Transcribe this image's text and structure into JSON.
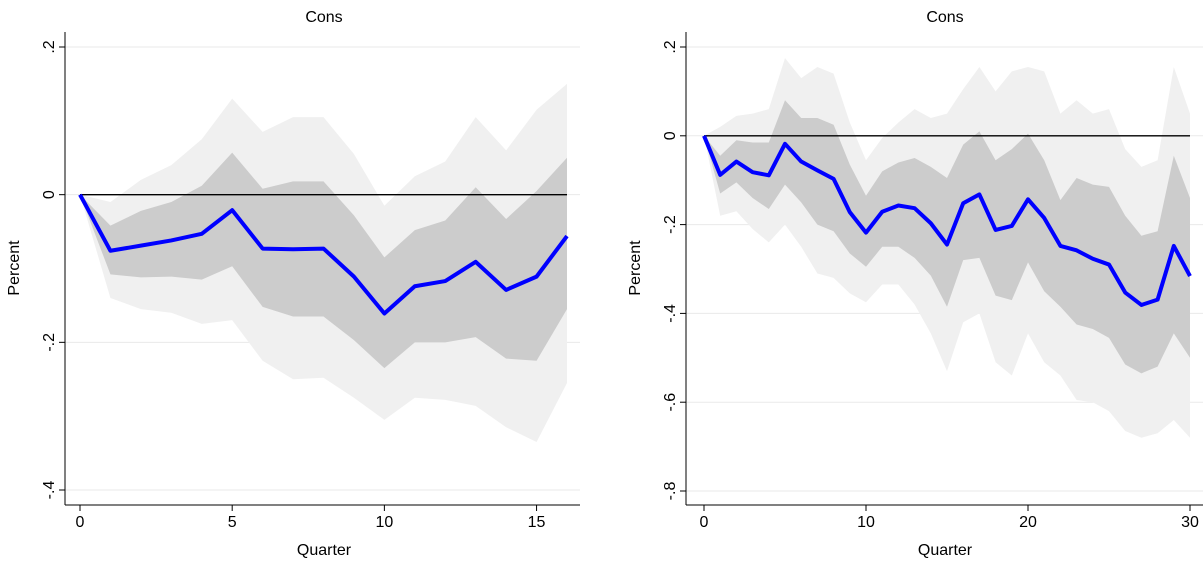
{
  "chart_data": [
    {
      "type": "area",
      "title": "Cons",
      "xlabel": "Quarter",
      "ylabel": "Percent",
      "xlim": [
        0,
        16
      ],
      "ylim": [
        -0.4,
        0.2
      ],
      "xticks": [
        0,
        5,
        10,
        15
      ],
      "xtick_labels": [
        "0",
        "5",
        "10",
        "15"
      ],
      "yticks": [
        -0.4,
        -0.2,
        0,
        0.2
      ],
      "ytick_labels": [
        "-.4",
        "-.2",
        "0",
        ".2"
      ],
      "grid": true,
      "zero_line": 0,
      "x": [
        0,
        1,
        2,
        3,
        4,
        5,
        6,
        7,
        8,
        9,
        10,
        11,
        12,
        13,
        14,
        15,
        16
      ],
      "series": [
        {
          "role": "outer_band",
          "color": "#f0f0f0",
          "upper": [
            0,
            -0.01,
            0.02,
            0.04,
            0.075,
            0.13,
            0.085,
            0.105,
            0.105,
            0.055,
            -0.015,
            0.025,
            0.045,
            0.105,
            0.06,
            0.115,
            0.15
          ],
          "lower": [
            0,
            -0.14,
            -0.155,
            -0.16,
            -0.175,
            -0.17,
            -0.225,
            -0.25,
            -0.248,
            -0.275,
            -0.305,
            -0.275,
            -0.278,
            -0.286,
            -0.315,
            -0.335,
            -0.255
          ]
        },
        {
          "role": "inner_band",
          "color": "#cccccc",
          "upper": [
            0,
            -0.042,
            -0.022,
            -0.01,
            0.012,
            0.057,
            0.008,
            0.018,
            0.018,
            -0.028,
            -0.085,
            -0.048,
            -0.035,
            0.01,
            -0.033,
            0.005,
            0.05
          ],
          "lower": [
            0,
            -0.108,
            -0.112,
            -0.111,
            -0.115,
            -0.097,
            -0.152,
            -0.165,
            -0.165,
            -0.197,
            -0.235,
            -0.2,
            -0.2,
            -0.193,
            -0.222,
            -0.225,
            -0.155
          ]
        },
        {
          "role": "response",
          "color": "#0000ff",
          "values": [
            0,
            -0.076,
            -0.069,
            -0.062,
            -0.053,
            -0.021,
            -0.073,
            -0.074,
            -0.073,
            -0.111,
            -0.161,
            -0.124,
            -0.117,
            -0.091,
            -0.129,
            -0.111,
            -0.056
          ]
        }
      ]
    },
    {
      "type": "area",
      "title": "Cons",
      "xlabel": "Quarter",
      "ylabel": "Percent",
      "xlim": [
        0,
        30
      ],
      "ylim": [
        -0.8,
        0.2
      ],
      "xticks": [
        0,
        10,
        20,
        30
      ],
      "xtick_labels": [
        "0",
        "10",
        "20",
        "30"
      ],
      "yticks": [
        -0.8,
        -0.6,
        -0.4,
        -0.2,
        0,
        0.2
      ],
      "ytick_labels": [
        "-.8",
        "-.6",
        "-.4",
        "-.2",
        "0",
        ".2"
      ],
      "grid": true,
      "zero_line": 0,
      "x": [
        0,
        1,
        2,
        3,
        4,
        5,
        6,
        7,
        8,
        9,
        10,
        11,
        12,
        13,
        14,
        15,
        16,
        17,
        18,
        19,
        20,
        21,
        22,
        23,
        24,
        25,
        26,
        27,
        28,
        29,
        30
      ],
      "series": [
        {
          "role": "outer_band",
          "color": "#f0f0f0",
          "upper": [
            0,
            0.02,
            0.045,
            0.05,
            0.06,
            0.175,
            0.13,
            0.155,
            0.14,
            0.03,
            -0.055,
            -0.005,
            0.03,
            0.06,
            0.04,
            0.05,
            0.105,
            0.155,
            0.1,
            0.145,
            0.155,
            0.145,
            0.05,
            0.08,
            0.05,
            0.06,
            -0.03,
            -0.07,
            -0.055,
            0.155,
            0.05
          ],
          "lower": [
            0,
            -0.18,
            -0.17,
            -0.21,
            -0.24,
            -0.2,
            -0.25,
            -0.31,
            -0.32,
            -0.355,
            -0.375,
            -0.335,
            -0.335,
            -0.38,
            -0.445,
            -0.53,
            -0.42,
            -0.4,
            -0.51,
            -0.54,
            -0.445,
            -0.51,
            -0.54,
            -0.595,
            -0.6,
            -0.62,
            -0.665,
            -0.68,
            -0.67,
            -0.64,
            -0.68
          ]
        },
        {
          "role": "inner_band",
          "color": "#cccccc",
          "upper": [
            0,
            -0.045,
            -0.01,
            -0.015,
            -0.015,
            0.08,
            0.04,
            0.04,
            0.025,
            -0.065,
            -0.135,
            -0.08,
            -0.06,
            -0.05,
            -0.07,
            -0.095,
            -0.02,
            0.01,
            -0.055,
            -0.03,
            0.005,
            -0.055,
            -0.145,
            -0.095,
            -0.11,
            -0.115,
            -0.18,
            -0.225,
            -0.215,
            -0.045,
            -0.14
          ],
          "lower": [
            0,
            -0.13,
            -0.105,
            -0.14,
            -0.165,
            -0.11,
            -0.15,
            -0.2,
            -0.215,
            -0.265,
            -0.295,
            -0.25,
            -0.25,
            -0.275,
            -0.315,
            -0.385,
            -0.28,
            -0.275,
            -0.36,
            -0.37,
            -0.285,
            -0.35,
            -0.385,
            -0.425,
            -0.435,
            -0.455,
            -0.515,
            -0.535,
            -0.52,
            -0.445,
            -0.5
          ]
        },
        {
          "role": "response",
          "color": "#0000ff",
          "values": [
            0,
            -0.088,
            -0.058,
            -0.082,
            -0.089,
            -0.018,
            -0.058,
            -0.078,
            -0.097,
            -0.172,
            -0.218,
            -0.171,
            -0.157,
            -0.163,
            -0.197,
            -0.245,
            -0.152,
            -0.132,
            -0.212,
            -0.203,
            -0.143,
            -0.185,
            -0.248,
            -0.258,
            -0.277,
            -0.29,
            -0.353,
            -0.381,
            -0.369,
            -0.248,
            -0.316
          ]
        }
      ]
    }
  ]
}
